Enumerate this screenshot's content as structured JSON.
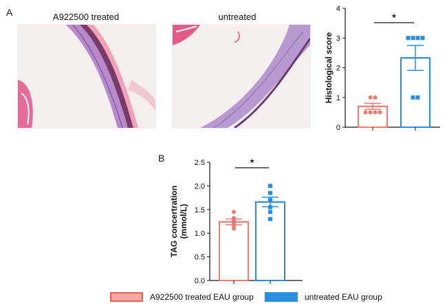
{
  "panel_a_label": "A",
  "panel_b_label": "B",
  "images": [
    {
      "title": "A922500 treated"
    },
    {
      "title": "untreated"
    }
  ],
  "legend": [
    {
      "label": "A922500 treated EAU group",
      "color": "#f07a70"
    },
    {
      "label": "untreated EAU group",
      "color": "#2a8ede"
    }
  ],
  "chart_data": [
    {
      "type": "bar",
      "ylabel": "Histological score",
      "ylim": [
        0,
        4
      ],
      "yticks": [
        "0",
        "1",
        "2",
        "3",
        "4"
      ],
      "significance": "*",
      "series": [
        {
          "color": "#f07a70",
          "mean": 0.7,
          "sem": 0.1,
          "points": [
            1.0,
            1.0,
            0.5,
            0.5,
            0.5,
            0.5
          ],
          "marker": "circle"
        },
        {
          "color": "#2a8ede",
          "mean": 2.33,
          "sem": 0.42,
          "points": [
            3.0,
            3.0,
            3.0,
            3.0,
            1.0,
            1.0
          ],
          "marker": "square"
        }
      ]
    },
    {
      "type": "bar",
      "ylabel": "TAG concertration",
      "ylabel2": "(mmol/L)",
      "ylim": [
        0,
        2.5
      ],
      "yticks": [
        "0.0",
        "0.5",
        "1.0",
        "1.5",
        "2.0",
        "2.5"
      ],
      "significance": "*",
      "series": [
        {
          "color": "#f07a70",
          "mean": 1.24,
          "sem": 0.06,
          "points": [
            1.45,
            1.32,
            1.27,
            1.22,
            1.15,
            1.1
          ],
          "marker": "circle"
        },
        {
          "color": "#2a8ede",
          "mean": 1.66,
          "sem": 0.1,
          "points": [
            2.0,
            1.85,
            1.7,
            1.55,
            1.45,
            1.3
          ],
          "marker": "square"
        }
      ]
    }
  ]
}
